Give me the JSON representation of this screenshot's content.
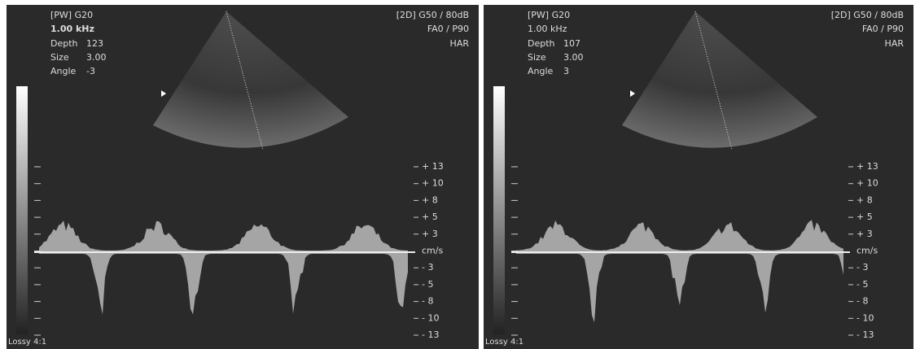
{
  "panels": [
    {
      "mode": "[PW]  G20",
      "frequency": "1.00 kHz",
      "params": [
        {
          "label": "Depth",
          "value": "123"
        },
        {
          "label": "Size",
          "value": "3.00"
        },
        {
          "label": "Angle",
          "value": "-3"
        }
      ],
      "settings": "[2D] G50 / 80dB",
      "filters": "FA0 / P90",
      "harmonic": "HAR",
      "scale": [
        "+ 13",
        "+ 10",
        "+ 8",
        "+ 5",
        "+ 3",
        "cm/s",
        "- 3",
        "- 5",
        "- 8",
        "- 10",
        "- 13"
      ],
      "compression": "Lossy 4:1"
    },
    {
      "mode": "[PW]  G20",
      "frequency": "1.00 kHz",
      "params": [
        {
          "label": "Depth",
          "value": "107"
        },
        {
          "label": "Size",
          "value": "3.00"
        },
        {
          "label": "Angle",
          "value": "3"
        }
      ],
      "settings": "[2D] G50 / 80dB",
      "filters": "FA0 / P90",
      "harmonic": "HAR",
      "scale": [
        "+ 13",
        "+ 10",
        "+ 8",
        "+ 5",
        "+ 3",
        "cm/s",
        "- 3",
        "- 5",
        "- 8",
        "- 10",
        "- 13"
      ],
      "compression": "Lossy 4:1"
    }
  ]
}
